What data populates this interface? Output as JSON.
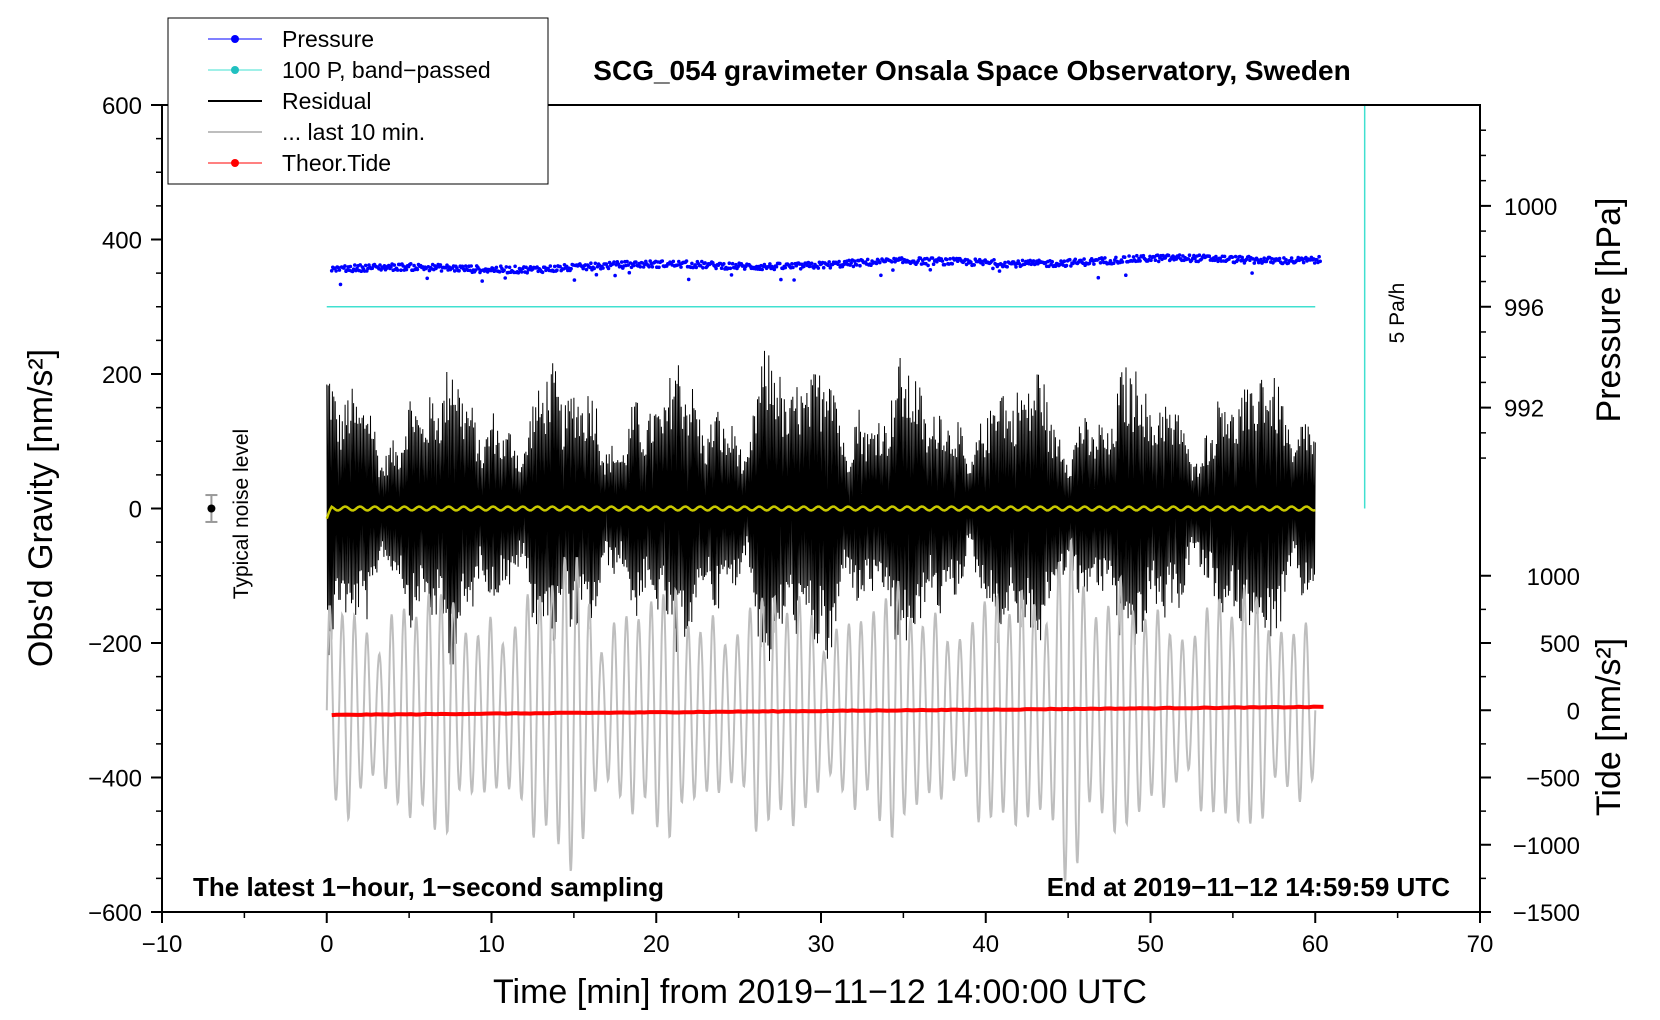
{
  "chart_data": {
    "type": "line",
    "title": "SCG_054 gravimeter Onsala Space Observatory, Sweden",
    "xlabel": "Time [min] from 2019−11−12 14:00:00 UTC",
    "ylabel_left": "Obs'd Gravity [nm/s²]",
    "ylabel_right_top": "Pressure [hPa]",
    "ylabel_right_bottom": "Tide [nm/s²]",
    "xlim": [
      -10,
      70
    ],
    "ylim": [
      -600,
      600
    ],
    "xticks": [
      "−10",
      "0",
      "10",
      "20",
      "30",
      "40",
      "50",
      "60",
      "70"
    ],
    "yticks": [
      "600",
      "400",
      "200",
      "0",
      "−200",
      "−400",
      "−600"
    ],
    "pressure_ticks": [
      "1000",
      "996",
      "992"
    ],
    "pressure_axis_map": {
      "p_ref": 1000,
      "g_at_ref": 450,
      "g_per_hPa": 37.5
    },
    "tide_ticks": [
      "1000",
      "500",
      "0",
      "−500",
      "−1000",
      "−1500"
    ],
    "tide_axis_map": {
      "t_ref": 0,
      "g_at_ref": -300,
      "g_per_unit": 0.2
    },
    "legend": [
      "Pressure",
      "100 P, band−passed",
      "Residual",
      "... last 10 min.",
      "Theor.Tide"
    ],
    "legend_position": "top-left",
    "colors": {
      "pressure": "#0000ff",
      "bandpassed": "#40e0d0",
      "residual": "#000000",
      "last10": "#bebebe",
      "tide": "#ff0000",
      "yellow": "#c8c800"
    },
    "series": [
      {
        "name": "Pressure",
        "display": "gravity-scaled",
        "x_range": [
          0.3,
          60.3
        ],
        "start": 355,
        "end": 372,
        "noise": 10
      },
      {
        "name": "100 P, band−passed",
        "x_range": [
          0,
          60
        ],
        "value": 300
      },
      {
        "name": "Residual",
        "x_range": [
          0,
          60
        ],
        "amplitude_range": [
          60,
          240
        ],
        "peaks": [
          {
            "x": 26.7,
            "max": 238,
            "min": -240
          },
          {
            "x": 30.5,
            "max": 235,
            "min": -245
          },
          {
            "x": 57.5,
            "min": -195
          }
        ]
      },
      {
        "name": "... last 10 min.",
        "display": "offset -300",
        "x_range": [
          0,
          60
        ],
        "offset": -300,
        "amplitude_range": [
          80,
          200
        ],
        "peaks": [
          {
            "x": 45,
            "min": -560
          },
          {
            "x": 14.8,
            "min": -540
          }
        ]
      },
      {
        "name": "Theor.Tide",
        "display": "gravity-scaled",
        "x_range": [
          0.3,
          60.5
        ],
        "start": -307,
        "end": -295
      }
    ],
    "noise_marker": {
      "x": -7,
      "y": 0,
      "error": 20,
      "label": "Typical noise level"
    },
    "vertical_bar": {
      "x": 63,
      "y_range": [
        0,
        600
      ],
      "label": "5 Pa/h"
    },
    "annotations": {
      "bottom_left": "The latest 1−hour, 1−second sampling",
      "bottom_right": "End at 2019−11−12 14:59:59 UTC"
    }
  }
}
